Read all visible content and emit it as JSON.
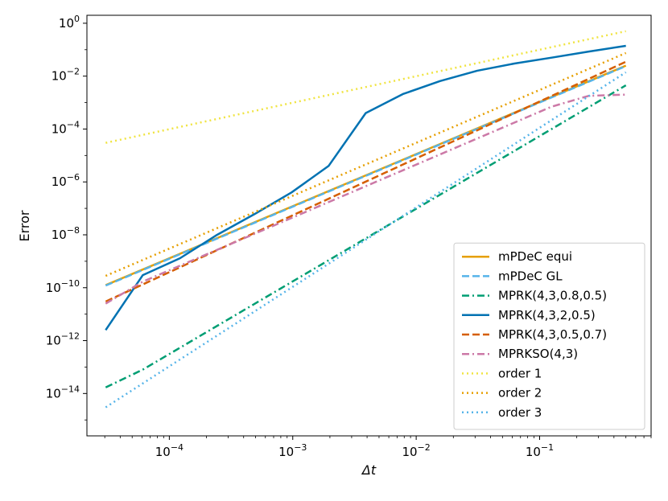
{
  "chart_data": {
    "type": "line",
    "xscale": "log",
    "yscale": "log",
    "xlabel": "Δt",
    "ylabel": "Error",
    "xlim": [
      2.15e-05,
      0.8
    ],
    "ylim": [
      2.5e-16,
      2.0
    ],
    "legend_position": "lower-right",
    "x_ticks": [
      {
        "value": 0.0001,
        "base": "10",
        "exp": "−4"
      },
      {
        "value": 0.001,
        "base": "10",
        "exp": "−3"
      },
      {
        "value": 0.01,
        "base": "10",
        "exp": "−2"
      },
      {
        "value": 0.1,
        "base": "10",
        "exp": "−1"
      }
    ],
    "y_ticks": [
      {
        "value": 1,
        "base": "10",
        "exp": "0"
      },
      {
        "value": 0.01,
        "base": "10",
        "exp": "−2"
      },
      {
        "value": 0.0001,
        "base": "10",
        "exp": "−4"
      },
      {
        "value": 1e-06,
        "base": "10",
        "exp": "−6"
      },
      {
        "value": 1e-08,
        "base": "10",
        "exp": "−8"
      },
      {
        "value": 1e-10,
        "base": "10",
        "exp": "−10"
      },
      {
        "value": 1e-12,
        "base": "10",
        "exp": "−12"
      },
      {
        "value": 1e-14,
        "base": "10",
        "exp": "−14"
      }
    ],
    "series": [
      {
        "name": "mPDeC equi",
        "color": "#E69F00",
        "dash": "solid",
        "x": [
          3.05e-05,
          0.5
        ],
        "y": [
          1.25e-10,
          0.025
        ]
      },
      {
        "name": "mPDeC GL",
        "color": "#56B4E9",
        "dash": "dashed",
        "x": [
          3.05e-05,
          0.5
        ],
        "y": [
          1.2e-10,
          0.024
        ]
      },
      {
        "name": "MPRK(4,3,0.8,0.5)",
        "color": "#009E73",
        "dash": "dashdot",
        "x": [
          3.05e-05,
          6.1e-05,
          0.5
        ],
        "y": [
          1.7e-14,
          8e-14,
          0.0045
        ]
      },
      {
        "name": "MPRK(4,3,2,0.5)",
        "color": "#0072B2",
        "dash": "solid",
        "x": [
          3.05e-05,
          6.1e-05,
          0.000122,
          0.000244,
          0.000488,
          0.000977,
          0.00195,
          0.0039,
          0.0078,
          0.0156,
          0.03125,
          0.0625,
          0.125,
          0.25,
          0.5
        ],
        "y": [
          2.5e-12,
          3e-10,
          1.3e-09,
          1e-08,
          6e-08,
          4e-07,
          4e-06,
          0.0004,
          0.0021,
          0.0065,
          0.016,
          0.03,
          0.05,
          0.085,
          0.14
        ]
      },
      {
        "name": "MPRK(4,3,0.5,0.7)",
        "color": "#D55E00",
        "dash": "dashed",
        "x": [
          3.05e-05,
          0.5
        ],
        "y": [
          3e-11,
          0.035
        ]
      },
      {
        "name": "MPRKSO(4,3)",
        "color": "#CC79A7",
        "dash": "dashdot",
        "x": [
          3.05e-05,
          6.1e-05,
          0.125,
          0.25,
          0.5
        ],
        "y": [
          2.5e-11,
          1.7e-10,
          0.0007,
          0.0018,
          0.002
        ]
      },
      {
        "name": "order 1",
        "color": "#F0E442",
        "dash": "dotted",
        "x": [
          3.05e-05,
          0.5
        ],
        "y": [
          3e-05,
          0.5
        ]
      },
      {
        "name": "order 2",
        "color": "#E69F00",
        "dash": "dotted",
        "x": [
          3.05e-05,
          0.5
        ],
        "y": [
          2.8e-10,
          0.075
        ]
      },
      {
        "name": "order 3",
        "color": "#56B4E9",
        "dash": "dotted",
        "x": [
          3.05e-05,
          0.5
        ],
        "y": [
          3e-15,
          0.014
        ]
      }
    ]
  }
}
